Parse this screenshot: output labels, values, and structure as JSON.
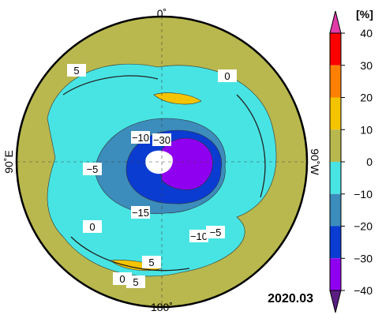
{
  "map": {
    "labels": {
      "top": "0˚",
      "left": "90˚E",
      "right": "90˚W",
      "bottom": "180˚"
    },
    "date": "2020.03",
    "contour_labels": [
      "5",
      "0",
      "−10",
      "−30",
      "−5",
      "−15",
      "0",
      "−10",
      "−5",
      "5",
      "5",
      "0"
    ]
  },
  "colorbar": {
    "title": "[%]",
    "lim": [
      -40,
      40
    ],
    "ticks": [
      {
        "value": 40,
        "label": "40"
      },
      {
        "value": 30,
        "label": "30"
      },
      {
        "value": 20,
        "label": "20"
      },
      {
        "value": 10,
        "label": "10"
      },
      {
        "value": 0,
        "label": "0"
      },
      {
        "value": -10,
        "label": "−10"
      },
      {
        "value": -20,
        "label": "−20"
      },
      {
        "value": -30,
        "label": "−30"
      },
      {
        "value": -40,
        "label": "−40"
      }
    ],
    "colors": [
      "#ff0000",
      "#ff8000",
      "#f5c400",
      "#b8b84e",
      "#48e4e4",
      "#3c8cbc",
      "#0a3cd2",
      "#9000f0"
    ],
    "over_color": "#e23aa8",
    "under_color": "#5a1e82"
  }
}
